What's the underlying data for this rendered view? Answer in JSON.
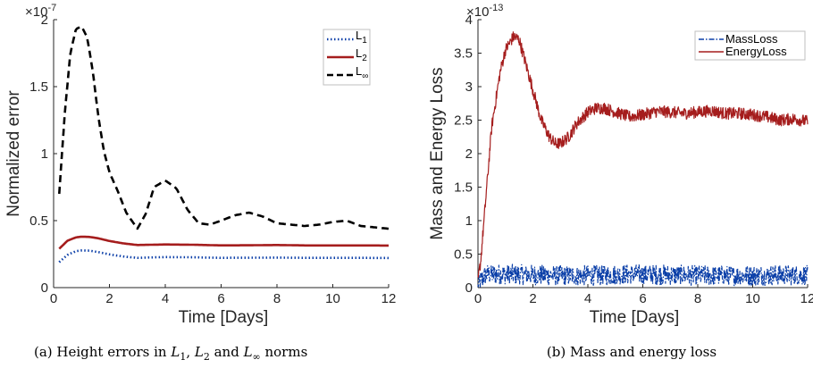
{
  "chart_data": [
    {
      "type": "line",
      "caption_prefix": "(a) Height errors in ",
      "caption_math": [
        {
          "base": "L",
          "sub": "1"
        },
        {
          "sep": ", "
        },
        {
          "base": "L",
          "sub": "2"
        },
        {
          "sep": " and "
        },
        {
          "base": "L",
          "sub": "∞"
        },
        {
          "sep": " norms"
        }
      ],
      "xlabel": "Time [Days]",
      "ylabel": "Normalized error",
      "y_exponent": "×10",
      "y_exponent_power": "-7",
      "xlim": [
        0,
        12
      ],
      "ylim": [
        0,
        2
      ],
      "xticks": [
        "0",
        "2",
        "4",
        "6",
        "8",
        "10",
        "12"
      ],
      "yticks": [
        "0",
        "0.5",
        "1",
        "1.5",
        "2"
      ],
      "legend_position": "top-right",
      "grid": false,
      "series": [
        {
          "name": "L",
          "name_sub": "1",
          "color": "#0b3fa8",
          "dash": "dotted",
          "x": [
            0.2,
            0.5,
            0.8,
            1.0,
            1.3,
            1.6,
            2.0,
            2.5,
            3.0,
            3.5,
            4.0,
            5.0,
            6.0,
            7.0,
            8.0,
            9.0,
            10.0,
            11.0,
            12.0
          ],
          "y": [
            0.19,
            0.245,
            0.272,
            0.278,
            0.275,
            0.265,
            0.248,
            0.232,
            0.222,
            0.225,
            0.228,
            0.226,
            0.222,
            0.223,
            0.224,
            0.222,
            0.222,
            0.222,
            0.221
          ]
        },
        {
          "name": "L",
          "name_sub": "2",
          "color": "#a51d1d",
          "dash": "solid",
          "x": [
            0.2,
            0.5,
            0.8,
            1.0,
            1.3,
            1.6,
            2.0,
            2.5,
            3.0,
            3.5,
            4.0,
            5.0,
            6.0,
            7.0,
            8.0,
            9.0,
            10.0,
            11.0,
            12.0
          ],
          "y": [
            0.29,
            0.35,
            0.375,
            0.38,
            0.378,
            0.368,
            0.348,
            0.33,
            0.318,
            0.32,
            0.322,
            0.32,
            0.315,
            0.316,
            0.318,
            0.315,
            0.315,
            0.315,
            0.314
          ]
        },
        {
          "name": "L",
          "name_sub": "∞",
          "color": "#000000",
          "dash": "dashed",
          "x": [
            0.2,
            0.4,
            0.6,
            0.8,
            1.0,
            1.2,
            1.4,
            1.6,
            1.8,
            2.0,
            2.3,
            2.6,
            3.0,
            3.3,
            3.6,
            4.0,
            4.4,
            4.8,
            5.2,
            5.6,
            6.0,
            6.5,
            7.0,
            7.5,
            8.0,
            8.5,
            9.0,
            9.5,
            10.0,
            10.5,
            11.0,
            11.5,
            12.0
          ],
          "y": [
            0.7,
            1.3,
            1.75,
            1.93,
            1.95,
            1.87,
            1.62,
            1.28,
            1.02,
            0.86,
            0.72,
            0.56,
            0.44,
            0.55,
            0.75,
            0.8,
            0.74,
            0.58,
            0.48,
            0.47,
            0.5,
            0.54,
            0.56,
            0.53,
            0.48,
            0.47,
            0.46,
            0.47,
            0.49,
            0.5,
            0.46,
            0.45,
            0.44
          ]
        }
      ]
    },
    {
      "type": "line",
      "caption": "(b) Mass and energy loss",
      "xlabel": "Time [Days]",
      "ylabel": "Mass and Energy Loss",
      "y_exponent": "×10",
      "y_exponent_power": "-13",
      "xlim": [
        0,
        12
      ],
      "ylim": [
        0,
        4
      ],
      "xticks": [
        "0",
        "2",
        "4",
        "6",
        "8",
        "10",
        "12"
      ],
      "yticks": [
        "0",
        "0.5",
        "1",
        "1.5",
        "2",
        "2.5",
        "3",
        "3.5",
        "4"
      ],
      "legend_position": "top-right",
      "grid": false,
      "series": [
        {
          "name": "MassLoss",
          "color": "#0b3fa8",
          "dash": "dashdot",
          "noisy": true,
          "noise_amplitude": 0.15,
          "x": [
            0.0,
            0.1,
            0.3,
            1.0,
            2.0,
            3.0,
            4.0,
            5.0,
            6.0,
            7.0,
            8.0,
            9.0,
            10.0,
            11.0,
            12.0
          ],
          "y": [
            0.0,
            0.1,
            0.2,
            0.2,
            0.19,
            0.18,
            0.18,
            0.19,
            0.2,
            0.19,
            0.18,
            0.18,
            0.18,
            0.19,
            0.18
          ]
        },
        {
          "name": "EnergyLoss",
          "color": "#a51d1d",
          "dash": "solid",
          "noisy": true,
          "noise_amplitude": 0.09,
          "x": [
            0.0,
            0.1,
            0.3,
            0.5,
            0.8,
            1.0,
            1.3,
            1.5,
            1.7,
            2.0,
            2.3,
            2.6,
            2.8,
            3.0,
            3.3,
            3.6,
            4.0,
            4.3,
            4.6,
            5.0,
            5.5,
            6.0,
            6.5,
            7.0,
            7.5,
            8.0,
            8.5,
            9.0,
            9.5,
            10.0,
            10.5,
            11.0,
            11.5,
            12.0
          ],
          "y": [
            0.1,
            0.4,
            1.4,
            2.4,
            3.2,
            3.55,
            3.75,
            3.7,
            3.4,
            2.95,
            2.5,
            2.25,
            2.15,
            2.15,
            2.25,
            2.45,
            2.62,
            2.68,
            2.68,
            2.62,
            2.55,
            2.58,
            2.63,
            2.62,
            2.6,
            2.62,
            2.64,
            2.6,
            2.6,
            2.58,
            2.55,
            2.5,
            2.52,
            2.48
          ]
        }
      ]
    }
  ]
}
